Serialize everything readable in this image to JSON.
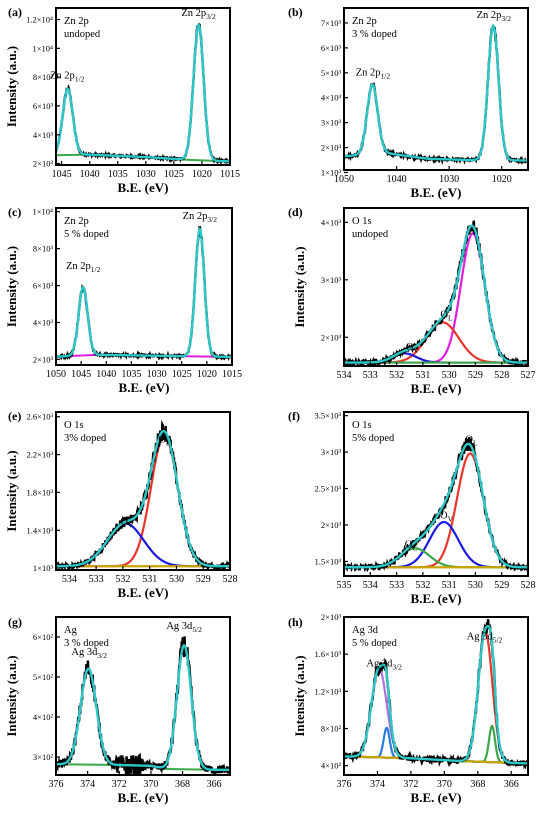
{
  "colors": {
    "frame": "#000000",
    "data": "#000000",
    "fit": "#2cc7c7",
    "background": "#3aa84a",
    "background_olive": "#c9a400",
    "magenta": "#e01ee0",
    "red": "#e8362c",
    "blue": "#1a1ae0",
    "green": "#3aa84a",
    "purple": "#b070e0",
    "steelblue": "#2a7ae0"
  },
  "chart_data": [
    {
      "type": "line",
      "panel": "(a)",
      "xlabel": "B.E. (eV)",
      "ylabel": "Intensity (a.u.)",
      "xlim": [
        1046,
        1015
      ],
      "ylim": [
        1900,
        12800
      ],
      "xticks": [
        1045,
        1040,
        1035,
        1030,
        1025,
        1020,
        1015
      ],
      "yticks": [
        {
          "v": 2000,
          "t": "2×10³"
        },
        {
          "v": 4000,
          "t": "4×10³"
        },
        {
          "v": 6000,
          "t": "6×10³"
        },
        {
          "v": 8000,
          "t": "8×10³"
        },
        {
          "v": 10000,
          "t": "1×10⁴"
        },
        {
          "v": 12000,
          "t": "1.2×10⁴"
        }
      ],
      "texts": [
        "Zn 2p",
        "undoped"
      ],
      "annotations": [
        {
          "t": "Zn 2p",
          "sub": "1/2",
          "x": 1044.0,
          "y": 7900
        },
        {
          "t": "Zn 2p",
          "sub": "3/2",
          "x": 1020.6,
          "y": 12250
        }
      ],
      "peaks": [
        {
          "center": 1043.9,
          "height": 4600,
          "width": 0.9
        },
        {
          "center": 1020.6,
          "height": 9400,
          "width": 0.9
        }
      ],
      "baseline": [
        [
          1046,
          2580
        ],
        [
          1040,
          2620
        ],
        [
          1030,
          2450
        ],
        [
          1022,
          2250
        ],
        [
          1015,
          2150
        ]
      ],
      "components": [
        {
          "kind": "baseline",
          "color": "#3aa84a"
        }
      ],
      "noise": 70
    },
    {
      "type": "line",
      "panel": "(b)",
      "xlabel": "B.E. (eV)",
      "ylabel": "",
      "xlim": [
        1050,
        1015
      ],
      "ylim": [
        1100,
        7600
      ],
      "xticks": [
        1050,
        1040,
        1030,
        1020
      ],
      "yticks": [
        {
          "v": 1000,
          "t": "1×10³"
        },
        {
          "v": 2000,
          "t": "2×10³"
        },
        {
          "v": 3000,
          "t": "3×10³"
        },
        {
          "v": 4000,
          "t": "4×10³"
        },
        {
          "v": 5000,
          "t": "5×10³"
        },
        {
          "v": 6000,
          "t": "6×10³"
        },
        {
          "v": 7000,
          "t": "7×10³"
        }
      ],
      "texts": [
        "Zn 2p",
        "3 % doped"
      ],
      "annotations": [
        {
          "t": "Zn 2p",
          "sub": "1/2",
          "x": 1044.5,
          "y": 4900
        },
        {
          "t": "Zn 2p",
          "sub": "3/2",
          "x": 1021.5,
          "y": 7200
        }
      ],
      "peaks": [
        {
          "center": 1044.6,
          "height": 2800,
          "width": 1.0
        },
        {
          "center": 1021.6,
          "height": 5400,
          "width": 1.0
        }
      ],
      "baseline": [
        [
          1050,
          1650
        ],
        [
          1042,
          1780
        ],
        [
          1034,
          1550
        ],
        [
          1026,
          1500
        ],
        [
          1015,
          1480
        ]
      ],
      "components": [],
      "noise": 50
    },
    {
      "type": "line",
      "panel": "(c)",
      "xlabel": "B.E. (eV)",
      "ylabel": "Intensity (a.u.)",
      "xlim": [
        1050,
        1015
      ],
      "ylim": [
        1700,
        10200
      ],
      "xticks": [
        1050,
        1045,
        1040,
        1035,
        1030,
        1025,
        1020,
        1015
      ],
      "yticks": [
        {
          "v": 2000,
          "t": "2×10³"
        },
        {
          "v": 4000,
          "t": "4×10³"
        },
        {
          "v": 6000,
          "t": "6×10³"
        },
        {
          "v": 8000,
          "t": "8×10³"
        },
        {
          "v": 10000,
          "t": "1×10⁴"
        }
      ],
      "texts": [
        "Zn 2p",
        "5 % doped"
      ],
      "annotations": [
        {
          "t": "Zn 2p",
          "sub": "1/2",
          "x": 1044.6,
          "y": 6900
        },
        {
          "t": "Zn 2p",
          "sub": "3/2",
          "x": 1021.4,
          "y": 9600
        }
      ],
      "peaks": [
        {
          "center": 1044.6,
          "height": 3700,
          "width": 0.9
        },
        {
          "center": 1021.4,
          "height": 6900,
          "width": 0.9
        }
      ],
      "baseline": [
        [
          1050,
          2150
        ],
        [
          1042,
          2250
        ],
        [
          1034,
          2220
        ],
        [
          1026,
          2180
        ],
        [
          1015,
          2140
        ]
      ],
      "components": [
        {
          "kind": "baseline",
          "color": "#e01ee0"
        }
      ],
      "noise": 60
    },
    {
      "type": "line",
      "panel": "(d)",
      "xlabel": "B.E. (eV)",
      "ylabel": "Intensity (a.u.)",
      "xlim": [
        534,
        527
      ],
      "ylim": [
        1500,
        4250
      ],
      "xticks": [
        534,
        533,
        532,
        531,
        530,
        529,
        528,
        527
      ],
      "yticks": [
        {
          "v": 2000,
          "t": "2×10³"
        },
        {
          "v": 3000,
          "t": "3×10³"
        },
        {
          "v": 4000,
          "t": "4×10³"
        }
      ],
      "texts": [
        "O 1s",
        "undoped"
      ],
      "annotations": [
        {
          "t": "O",
          "sub": "L",
          "x": 530.1,
          "y": 2340
        },
        {
          "t": "O",
          "sub": "V",
          "x": 531.4,
          "y": 1780
        }
      ],
      "baseline_level": 1560,
      "components": [
        {
          "kind": "peak",
          "center": 529.1,
          "height": 2250,
          "width": 0.45,
          "color": "#e01ee0"
        },
        {
          "kind": "peak",
          "center": 530.25,
          "height": 700,
          "width": 0.62,
          "color": "#e8362c"
        },
        {
          "kind": "peak",
          "center": 531.7,
          "height": 160,
          "width": 0.45,
          "color": "#1a1ae0"
        }
      ],
      "baseline_color": "#3aa84a",
      "noise": 40
    },
    {
      "type": "line",
      "panel": "(e)",
      "xlabel": "B.E. (eV)",
      "ylabel": "Intensity (a.u.)",
      "xlim": [
        534.5,
        528
      ],
      "ylim": [
        980,
        2650
      ],
      "xticks": [
        534,
        533,
        532,
        531,
        530,
        529,
        528
      ],
      "yticks": [
        {
          "v": 1000,
          "t": "1×10³"
        },
        {
          "v": 1400,
          "t": "1.4×10³"
        },
        {
          "v": 1800,
          "t": "1.8×10³"
        },
        {
          "v": 2200,
          "t": "2.2×10³"
        },
        {
          "v": 2600,
          "t": "2.6×10³"
        }
      ],
      "texts": [
        "O 1s",
        "3% doped"
      ],
      "annotations": [
        {
          "t": "O",
          "sub": "L",
          "x": 530.45,
          "y": 2330
        },
        {
          "t": "O",
          "sub": "V",
          "x": 531.85,
          "y": 1460
        }
      ],
      "baseline_level": 1020,
      "components": [
        {
          "kind": "peak",
          "center": 530.45,
          "height": 1380,
          "width": 0.5,
          "color": "#e8362c"
        },
        {
          "kind": "peak",
          "center": 531.9,
          "height": 450,
          "width": 0.68,
          "color": "#1a1ae0"
        }
      ],
      "baseline_color": "#c9a400",
      "noise": 30
    },
    {
      "type": "line",
      "panel": "(f)",
      "xlabel": "B.E. (eV)",
      "ylabel": "",
      "xlim": [
        535,
        528
      ],
      "ylim": [
        1300,
        3550
      ],
      "xticks": [
        535,
        534,
        533,
        532,
        531,
        530,
        529,
        528
      ],
      "yticks": [
        {
          "v": 1500,
          "t": "1.5×10³"
        },
        {
          "v": 2000,
          "t": "2×10³"
        },
        {
          "v": 2500,
          "t": "2.5×10³"
        },
        {
          "v": 3000,
          "t": "3×10³"
        },
        {
          "v": 3500,
          "t": "3.5×10³"
        }
      ],
      "texts": [
        "O 1s",
        "5% doped"
      ],
      "annotations": [
        {
          "t": "O",
          "sub": "L",
          "x": 530.15,
          "y": 3130
        },
        {
          "t": "O",
          "sub": "V",
          "x": 531.1,
          "y": 2090
        },
        {
          "t": "O",
          "sub": "C",
          "x": 532.45,
          "y": 1690
        }
      ],
      "baseline_level": 1420,
      "components": [
        {
          "kind": "peak",
          "center": 530.2,
          "height": 1560,
          "width": 0.5,
          "color": "#e8362c"
        },
        {
          "kind": "peak",
          "center": 531.2,
          "height": 620,
          "width": 0.55,
          "color": "#1a1ae0"
        },
        {
          "kind": "peak",
          "center": 532.3,
          "height": 260,
          "width": 0.55,
          "color": "#3aa84a"
        }
      ],
      "baseline_color": "#c9a400",
      "noise": 35
    },
    {
      "type": "line",
      "panel": "(g)",
      "xlabel": "B.E. (eV)",
      "ylabel": "Intensity (a.u.)",
      "xlim": [
        376,
        365
      ],
      "ylim": [
        255,
        650
      ],
      "xticks": [
        376,
        374,
        372,
        370,
        368,
        366
      ],
      "yticks": [
        {
          "v": 300,
          "t": "3×10²"
        },
        {
          "v": 400,
          "t": "4×10²"
        },
        {
          "v": 500,
          "t": "5×10²"
        },
        {
          "v": 600,
          "t": "6×10²"
        }
      ],
      "texts": [
        "Ag",
        "3 % doped"
      ],
      "annotations": [
        {
          "t": "Ag 3d",
          "sub": "3/2",
          "x": 373.9,
          "y": 555
        },
        {
          "t": "Ag 3d",
          "sub": "5/2",
          "x": 367.9,
          "y": 620
        }
      ],
      "peaks": [
        {
          "center": 373.95,
          "height": 240,
          "width": 0.5
        },
        {
          "center": 367.9,
          "height": 310,
          "width": 0.45
        }
      ],
      "baseline": [
        [
          376,
          282
        ],
        [
          372,
          280
        ],
        [
          370,
          278
        ],
        [
          369,
          270
        ],
        [
          366,
          268
        ],
        [
          365,
          268
        ]
      ],
      "components": [
        {
          "kind": "baseline",
          "color": "#3aa84a"
        }
      ],
      "noise": 10,
      "noisy_region": [
        372.2,
        370.5
      ]
    },
    {
      "type": "line",
      "panel": "(h)",
      "xlabel": "B.E. (eV)",
      "ylabel": "Intensity (a.u.)",
      "xlim": [
        376,
        365
      ],
      "ylim": [
        300,
        2000
      ],
      "xticks": [
        376,
        374,
        372,
        370,
        368,
        366
      ],
      "yticks": [
        {
          "v": 400,
          "t": "4×10²"
        },
        {
          "v": 800,
          "t": "8×10²"
        },
        {
          "v": 1200,
          "t": "1.2×10³"
        },
        {
          "v": 1600,
          "t": "1.6×10³"
        },
        {
          "v": 2000,
          "t": "2×10³"
        }
      ],
      "texts": [
        "Ag 3d",
        "5 % doped"
      ],
      "annotations": [
        {
          "t": "Ag 3d",
          "sub": "3/2",
          "x": 373.6,
          "y": 1470
        },
        {
          "t": "Ag 3d",
          "sub": "5/2",
          "x": 367.6,
          "y": 1760
        }
      ],
      "baseline_points": [
        [
          376,
          500
        ],
        [
          372,
          480
        ],
        [
          369,
          450
        ],
        [
          366,
          430
        ],
        [
          365,
          425
        ]
      ],
      "components": [
        {
          "kind": "peak",
          "center": 373.9,
          "height": 960,
          "width": 0.45,
          "color": "#b070e0"
        },
        {
          "kind": "peak",
          "center": 373.45,
          "height": 320,
          "width": 0.18,
          "color": "#2a7ae0"
        },
        {
          "kind": "peak",
          "center": 367.55,
          "height": 1400,
          "width": 0.42,
          "color": "#e8362c"
        },
        {
          "kind": "peak",
          "center": 367.15,
          "height": 390,
          "width": 0.18,
          "color": "#3aa84a"
        }
      ],
      "baseline_color": "#c9a400",
      "noise": 30
    }
  ]
}
